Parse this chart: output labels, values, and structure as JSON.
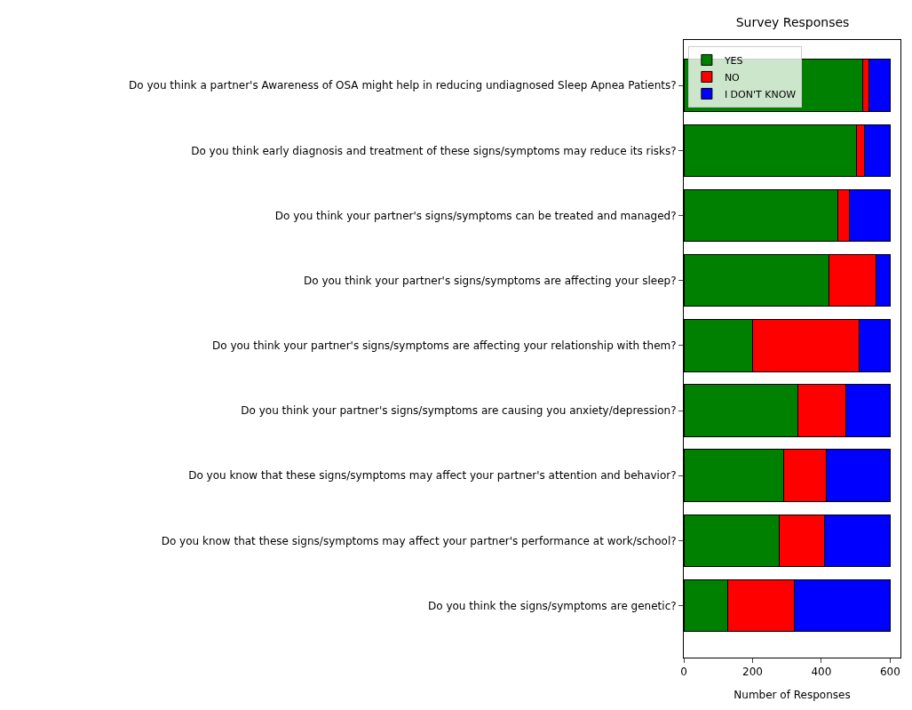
{
  "chart_data": {
    "type": "bar",
    "orientation": "horizontal",
    "stacked": true,
    "title": "Survey Responses",
    "xlabel": "Number of Responses",
    "categories": [
      "Do you think a partner's Awareness of OSA might help in reducing undiagnosed Sleep Apnea Patients?",
      "Do you think early diagnosis and treatment of these signs/symptoms may reduce its risks?",
      "Do you think your partner's signs/symptoms can be treated and managed?",
      "Do you think your partner's signs/symptoms are affecting your sleep?",
      "Do you think your partner's signs/symptoms are affecting your relationship with them?",
      "Do you think your partner's signs/symptoms are causing you anxiety/depression?",
      "Do you know that these signs/symptoms may affect your partner's attention and behavior?",
      "Do you know that these signs/symptoms may affect your partner's performance at work/school?",
      "Do you think the signs/symptoms are genetic?"
    ],
    "series": [
      {
        "name": "YES",
        "color": "#008000",
        "values": [
          519,
          502,
          448,
          422,
          201,
          331,
          291,
          277,
          128
        ]
      },
      {
        "name": "NO",
        "color": "#ff0000",
        "values": [
          19,
          23,
          34,
          138,
          308,
          141,
          124,
          132,
          194
        ]
      },
      {
        "name": "I DON'T KNOW",
        "color": "#0000ff",
        "values": [
          62,
          75,
          118,
          40,
          91,
          128,
          185,
          191,
          278
        ]
      }
    ],
    "xlim": [
      0,
      630
    ],
    "xticks": [
      0,
      200,
      400,
      600
    ],
    "legend": "top left"
  }
}
